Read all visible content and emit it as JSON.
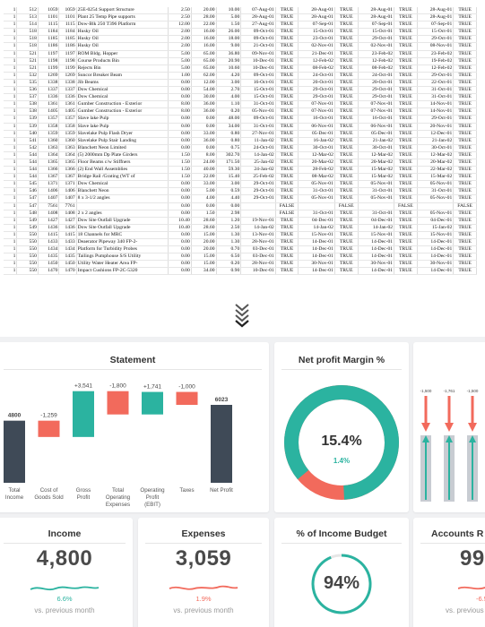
{
  "sheet": {
    "rows": [
      [
        "1",
        "512",
        "1059",
        "1059",
        "25E-0254 Support Structure",
        "2.50",
        "20.00",
        "10.00",
        "07-Aug-01",
        "TRUE",
        "28-Aug-01",
        "TRUE",
        "28-Aug-01",
        "TRUE",
        "28-Aug-01",
        "TRUE"
      ],
      [
        "1",
        "513",
        "1101",
        "1101",
        "Plant 25 Temp Pipe supports",
        "2.50",
        "28.00",
        "5.00",
        "28-Aug-01",
        "TRUE",
        "28-Aug-01",
        "TRUE",
        "28-Aug-01",
        "TRUE",
        "28-Aug-01",
        "TRUE"
      ],
      [
        "1",
        "514",
        "1115",
        "1115",
        "Dow-Blk 250 T396 Platform",
        "12.00",
        "22.00",
        "1.50",
        "27-Aug-01",
        "TRUE",
        "07-Sep-01",
        "TRUE",
        "07-Sep-01",
        "TRUE",
        "07-Sep-01",
        "TRUE"
      ],
      [
        "1",
        "518",
        "1184",
        "1184",
        "Husky Oil",
        "2.00",
        "16.00",
        "26.00",
        "09-Oct-01",
        "TRUE",
        "15-Oct-01",
        "TRUE",
        "15-Oct-01",
        "TRUE",
        "15-Oct-01",
        "TRUE"
      ],
      [
        "1",
        "518",
        "1185",
        "1185",
        "Husky Oil",
        "2.00",
        "16.00",
        "18.00",
        "09-Oct-01",
        "TRUE",
        "23-Oct-01",
        "TRUE",
        "29-Oct-01",
        "TRUE",
        "29-Oct-01",
        "TRUE"
      ],
      [
        "1",
        "518",
        "1186",
        "1186",
        "Husky Oil",
        "2.00",
        "16.00",
        "9.00",
        "21-Oct-01",
        "TRUE",
        "02-Nov-01",
        "TRUE",
        "02-Nov-01",
        "TRUE",
        "08-Nov-01",
        "TRUE"
      ],
      [
        "1",
        "521",
        "1197",
        "1197",
        "ROM Bldg. Hopper",
        "5.00",
        "65.00",
        "36.80",
        "09-Nov-01",
        "TRUE",
        "21-Dec-01",
        "TRUE",
        "23-Feb-02",
        "TRUE",
        "23-Feb-02",
        "TRUE"
      ],
      [
        "1",
        "521",
        "1198",
        "1198",
        "Course Products Bin",
        "5.00",
        "65.00",
        "20.90",
        "10-Dec-01",
        "TRUE",
        "12-Feb-02",
        "TRUE",
        "12-Feb-02",
        "TRUE",
        "19-Feb-02",
        "TRUE"
      ],
      [
        "1",
        "521",
        "1199",
        "1199",
        "Rejects Bin",
        "5.00",
        "65.00",
        "10.60",
        "10-Dec-01",
        "TRUE",
        "08-Feb-02",
        "TRUE",
        "08-Feb-02",
        "TRUE",
        "12-Feb-02",
        "TRUE"
      ],
      [
        "1",
        "532",
        "1269",
        "1269",
        "Suncor Breaker Beam",
        "1.00",
        "62.00",
        "4.20",
        "09-Oct-01",
        "TRUE",
        "24-Oct-01",
        "TRUE",
        "24-Oct-01",
        "TRUE",
        "29-Oct-01",
        "TRUE"
      ],
      [
        "1",
        "535",
        "1338",
        "1338",
        "Jib Beams",
        "0.00",
        "12.00",
        "3.00",
        "16-Oct-01",
        "TRUE",
        "20-Oct-01",
        "TRUE",
        "20-Oct-01",
        "TRUE",
        "22-Oct-01",
        "TRUE"
      ],
      [
        "1",
        "536",
        "1337",
        "1337",
        "Dow Chemical",
        "0.00",
        "54.00",
        "2.70",
        "15-Oct-01",
        "TRUE",
        "29-Oct-01",
        "TRUE",
        "29-Oct-01",
        "TRUE",
        "31-Oct-01",
        "TRUE"
      ],
      [
        "1",
        "537",
        "1336",
        "1336",
        "Dow Chemical",
        "0.00",
        "30.00",
        "4.00",
        "15-Oct-01",
        "TRUE",
        "29-Oct-01",
        "TRUE",
        "29-Oct-01",
        "TRUE",
        "31-Oct-01",
        "TRUE"
      ],
      [
        "1",
        "538",
        "1361",
        "1361",
        "Gumber Construction - Exterior",
        "8.00",
        "36.00",
        "1.10",
        "31-Oct-01",
        "TRUE",
        "07-Nov-01",
        "TRUE",
        "07-Nov-01",
        "TRUE",
        "14-Nov-01",
        "TRUE"
      ],
      [
        "1",
        "538",
        "1405",
        "1405",
        "Gumber Construction - Exterior",
        "8.00",
        "36.00",
        "0.20",
        "05-Nov-01",
        "TRUE",
        "07-Nov-01",
        "TRUE",
        "07-Nov-01",
        "TRUE",
        "14-Nov-01",
        "TRUE"
      ],
      [
        "1",
        "539",
        "1357",
        "1357",
        "Slave lake Pulp",
        "0.00",
        "0.00",
        "48.00",
        "09-Oct-01",
        "TRUE",
        "16-Oct-01",
        "TRUE",
        "16-Oct-01",
        "TRUE",
        "29-Oct-01",
        "TRUE"
      ],
      [
        "1",
        "539",
        "1358",
        "1358",
        "Slave lake Pulp",
        "0.00",
        "0.00",
        "34.00",
        "31-Oct-01",
        "TRUE",
        "06-Nov-01",
        "TRUE",
        "06-Nov-01",
        "TRUE",
        "20-Nov-01",
        "TRUE"
      ],
      [
        "1",
        "540",
        "1359",
        "1359",
        "Slavelake Pulp Flash Dryer",
        "0.00",
        "33.00",
        "0.80",
        "27-Nov-01",
        "TRUE",
        "05-Dec-01",
        "TRUE",
        "05-Dec-01",
        "TRUE",
        "12-Dec-01",
        "TRUE"
      ],
      [
        "1",
        "541",
        "1360",
        "1360",
        "Slavelake Pulp Stair Landing",
        "0.00",
        "36.00",
        "0.80",
        "11-Jan-02",
        "TRUE",
        "16-Jan-02",
        "TRUE",
        "21-Jan-02",
        "TRUE",
        "21-Jan-02",
        "TRUE"
      ],
      [
        "1",
        "542",
        "1363",
        "1363",
        "Blanchett Neon Limited",
        "0.00",
        "0.00",
        "0.75",
        "24-Oct-01",
        "TRUE",
        "30-Oct-01",
        "TRUE",
        "30-Oct-01",
        "TRUE",
        "30-Oct-01",
        "TRUE"
      ],
      [
        "1",
        "544",
        "1364",
        "1364",
        "(5) 2000mm Dp Plate Girders",
        "1.50",
        "8.00",
        "302.70",
        "14-Jan-02",
        "TRUE",
        "12-Mar-02",
        "TRUE",
        "12-Mar-02",
        "TRUE",
        "12-Mar-02",
        "TRUE"
      ],
      [
        "1",
        "544",
        "1365",
        "1365",
        "Floor Beams c/w Stiffners",
        "1.50",
        "24.00",
        "171.50",
        "25-Jan-02",
        "TRUE",
        "20-Mar-02",
        "TRUE",
        "20-Mar-02",
        "TRUE",
        "20-Mar-02",
        "TRUE"
      ],
      [
        "1",
        "544",
        "1366",
        "1366",
        "(2) End Wall Assemblies",
        "1.50",
        "40.00",
        "59.30",
        "24-Jan-02",
        "TRUE",
        "28-Feb-02",
        "TRUE",
        "15-Mar-02",
        "TRUE",
        "22-Mar-02",
        "TRUE"
      ],
      [
        "1",
        "544",
        "1367",
        "1367",
        "Bridge Rail /Grating (WT of",
        "1.50",
        "22.00",
        "15.40",
        "25-Feb-02",
        "TRUE",
        "08-Mar-02",
        "TRUE",
        "15-Mar-02",
        "TRUE",
        "15-Mar-02",
        "TRUE"
      ],
      [
        "1",
        "545",
        "1371",
        "1371",
        "Dow Chemical",
        "0.00",
        "33.00",
        "3.00",
        "29-Oct-01",
        "TRUE",
        "05-Nov-01",
        "TRUE",
        "05-Nov-01",
        "TRUE",
        "05-Nov-01",
        "TRUE"
      ],
      [
        "1",
        "546",
        "1406",
        "1406",
        "Blanchett Neon",
        "0.00",
        "5.00",
        "0.59",
        "29-Oct-01",
        "TRUE",
        "31-Oct-01",
        "TRUE",
        "31-Oct-01",
        "TRUE",
        "31-Oct-01",
        "TRUE"
      ],
      [
        "1",
        "547",
        "1407",
        "1407",
        "8 x 3-1/2 angles",
        "0.00",
        "4.00",
        "4.40",
        "29-Oct-01",
        "TRUE",
        "05-Nov-01",
        "TRUE",
        "05-Nov-01",
        "TRUE",
        "05-Nov-01",
        "TRUE"
      ],
      [
        "1",
        "547",
        "7561",
        "7761",
        "",
        "0.00",
        "0.00",
        "0.00",
        "",
        "FALSE",
        "",
        "FALSE",
        "",
        "FALSE",
        "",
        "FALSE"
      ],
      [
        "1",
        "548",
        "1408",
        "1408",
        "2 x 2 angles",
        "0.00",
        "1.50",
        "2.98",
        "",
        "FALSE",
        "31-Oct-01",
        "TRUE",
        "31-Oct-01",
        "TRUE",
        "05-Nov-01",
        "TRUE"
      ],
      [
        "1",
        "549",
        "1427",
        "1427",
        "Dow Site Outfall Upgrade",
        "10.40",
        "28.60",
        "1.20",
        "19-Nov-01",
        "TRUE",
        "04-Dec-01",
        "TRUE",
        "04-Dec-01",
        "TRUE",
        "04-Dec-01",
        "TRUE"
      ],
      [
        "1",
        "549",
        "1436",
        "1436",
        "Dow Site Outfall Upgrade",
        "10.40",
        "28.60",
        "2.50",
        "14-Jan-02",
        "TRUE",
        "14-Jan-02",
        "TRUE",
        "14-Jan-02",
        "TRUE",
        "15-Jan-02",
        "TRUE"
      ],
      [
        "1",
        "550",
        "1415",
        "1415",
        "18 Channels for MRC",
        "0.00",
        "15.00",
        "1.30",
        "13-Nov-01",
        "TRUE",
        "15-Nov-01",
        "TRUE",
        "15-Nov-01",
        "TRUE",
        "15-Nov-01",
        "TRUE"
      ],
      [
        "1",
        "550",
        "1433",
        "1433",
        "Deaerator Pipeway 340  FP-2-",
        "0.00",
        "20.00",
        "1.30",
        "28-Nov-01",
        "TRUE",
        "14-Dec-01",
        "TRUE",
        "14-Dec-01",
        "TRUE",
        "14-Dec-01",
        "TRUE"
      ],
      [
        "1",
        "550",
        "1434",
        "1434",
        "Platform for Turbidity Probes",
        "0.00",
        "20.00",
        "0.70",
        "03-Dec-01",
        "TRUE",
        "14-Dec-01",
        "TRUE",
        "14-Dec-01",
        "TRUE",
        "14-Dec-01",
        "TRUE"
      ],
      [
        "1",
        "550",
        "1435",
        "1435",
        "Tailings Pumphouse S/S Utility",
        "0.00",
        "15.00",
        "6.50",
        "03-Dec-01",
        "TRUE",
        "14-Dec-01",
        "TRUE",
        "14-Dec-01",
        "TRUE",
        "14-Dec-01",
        "TRUE"
      ],
      [
        "1",
        "550",
        "1450",
        "1450",
        "Utility Water Heater Area FP-",
        "0.00",
        "15.00",
        "0.20",
        "28-Nov-01",
        "TRUE",
        "30-Nov-01",
        "TRUE",
        "30-Nov-01",
        "TRUE",
        "30-Nov-01",
        "TRUE"
      ],
      [
        "1",
        "550",
        "1470",
        "1470",
        "Impact Cushions  FP-2C-5320",
        "0.00",
        "34.00",
        "0.90",
        "10-Dec-01",
        "TRUE",
        "14-Dec-01",
        "TRUE",
        "14-Dec-01",
        "TRUE",
        "14-Dec-01",
        "TRUE"
      ]
    ]
  },
  "arrow_icon": "chevron-double-down-icon",
  "statement": {
    "title": "Statement",
    "chart_data": {
      "type": "bar",
      "subtype": "waterfall",
      "categories": [
        "Total Income",
        "Cost of Goods Sold",
        "Gross Profit",
        "Total Operating Expenses",
        "Operating Profit (EBIT)",
        "Taxes",
        "Net Profit"
      ],
      "values": [
        4800,
        -1259,
        3541,
        -1800,
        1741,
        -1000,
        6023
      ],
      "kinds": [
        "total",
        "decrease",
        "increase",
        "decrease",
        "increase",
        "decrease",
        "total"
      ],
      "labels": [
        "4800",
        "-1,259",
        "+3,541",
        "-1,800",
        "+1,741",
        "-1,000",
        "6023"
      ],
      "colors": {
        "total": "#3f4a57",
        "decrease": "#f26a5c",
        "increase": "#2bb3a0"
      }
    }
  },
  "margin": {
    "title": "Net profit Margin %",
    "value": "15.4%",
    "delta": "1.4%",
    "chart_data": {
      "type": "pie",
      "values": [
        15.4,
        84.6
      ],
      "colors": [
        "#2bb3a0",
        "#f26a5c"
      ]
    }
  },
  "partial_chart": {
    "labels": [
      "-1,500",
      "-1,761",
      "-1,500"
    ],
    "colors": {
      "down": "#f26a5c",
      "up": "#2bb3a0",
      "bar": "#c8ccd2"
    }
  },
  "kpis": [
    {
      "title": "Income",
      "value": "4,800",
      "pct": "6.6%",
      "pct_color": "#2bb3a0",
      "sub": "vs. previous month"
    },
    {
      "title": "Expenses",
      "value": "3,059",
      "pct": "1.9%",
      "pct_color": "#f26a5c",
      "sub": "vs. previous month"
    },
    {
      "title": "% of Income Budget",
      "value": "94%",
      "chart_data": {
        "type": "pie",
        "values": [
          94,
          6
        ],
        "colors": [
          "#2bb3a0",
          "#e6e6e6"
        ]
      }
    },
    {
      "title": "Accounts R",
      "value": "99",
      "pct": "-6.5",
      "pct_color": "#f26a5c",
      "sub": "vs. previous m"
    }
  ]
}
